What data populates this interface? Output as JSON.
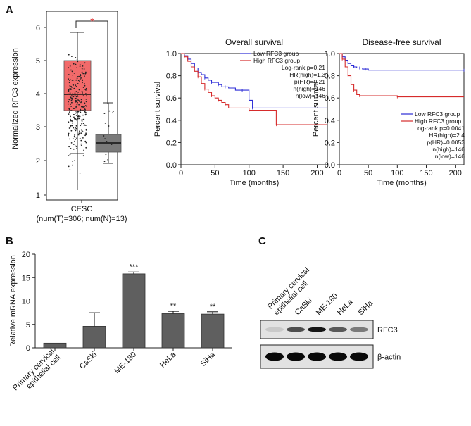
{
  "panels": {
    "a": "A",
    "b": "B",
    "c": "C"
  },
  "boxplot": {
    "ylabel": "Normalized RFC3 expression",
    "yticks": [
      "1",
      "2",
      "3",
      "4",
      "5",
      "6"
    ],
    "significance": "*",
    "xlabel_line1": "CESC",
    "xlabel_line2": "(num(T)=306; num(N)=13)",
    "colors": {
      "tumor": "#f26a6a",
      "normal": "#7a7a7a"
    }
  },
  "survival": [
    {
      "title": "Overall survival",
      "ylabel": "Percent survival",
      "xlabel": "Time (months)",
      "yticks": [
        "0.0",
        "0.2",
        "0.4",
        "0.6",
        "0.8",
        "1.0"
      ],
      "xticks": [
        "0",
        "50",
        "100",
        "150",
        "200"
      ],
      "legend": [
        {
          "label": "Low RFC3 group",
          "color": "#2b2bd6"
        },
        {
          "label": "High RFC3 group",
          "color": "#d62b2b"
        }
      ],
      "stats": [
        "Log-rank p=0.21",
        "HR(high)=1.3",
        "p(HR)=0.21",
        "n(high)=146",
        "n(low)=146"
      ]
    },
    {
      "title": "Disease-free survival",
      "ylabel": "Percent survival",
      "xlabel": "Time (months)",
      "yticks": [
        "0.0",
        "0.2",
        "0.4",
        "0.6",
        "0.8",
        "1.0"
      ],
      "xticks": [
        "0",
        "50",
        "100",
        "150",
        "200"
      ],
      "legend": [
        {
          "label": "Low RFC3 group",
          "color": "#2b2bd6"
        },
        {
          "label": "High RFC3 group",
          "color": "#d62b2b"
        }
      ],
      "stats": [
        "Log-rank p=0.0041",
        "HR(high)=2.4",
        "p(HR)=0.0053",
        "n(high)=146",
        "n(low)=146"
      ]
    }
  ],
  "chart_data": [
    {
      "type": "bar",
      "title": "",
      "ylabel": "Relative mRNA expression",
      "xlabel": "",
      "ylim": [
        0,
        20
      ],
      "yticks": [
        "0",
        "5",
        "10",
        "15",
        "20"
      ],
      "categories": [
        "Primary cervical\nepithelial cell",
        "CaSki",
        "ME-180",
        "HeLa",
        "SiHa"
      ],
      "values": [
        1.0,
        4.6,
        15.8,
        7.3,
        7.2
      ],
      "errors": [
        0.0,
        2.9,
        0.4,
        0.5,
        0.5
      ],
      "significance": [
        "",
        "",
        "***",
        "**",
        "**"
      ],
      "bar_color": "#5f5f5f"
    },
    {
      "type": "line",
      "title": "Overall survival",
      "xlabel": "Time (months)",
      "ylabel": "Percent survival",
      "xlim": [
        0,
        215
      ],
      "ylim": [
        0,
        1.0
      ],
      "series": [
        {
          "name": "Low RFC3 group",
          "color": "#2b2bd6",
          "x": [
            0,
            5,
            10,
            15,
            20,
            25,
            30,
            35,
            40,
            45,
            50,
            55,
            60,
            65,
            70,
            75,
            80,
            90,
            100,
            105,
            215
          ],
          "y": [
            1.0,
            0.98,
            0.95,
            0.91,
            0.87,
            0.83,
            0.81,
            0.78,
            0.76,
            0.74,
            0.74,
            0.72,
            0.7,
            0.7,
            0.69,
            0.69,
            0.67,
            0.67,
            0.58,
            0.51,
            0.51
          ]
        },
        {
          "name": "High RFC3 group",
          "color": "#d62b2b",
          "x": [
            0,
            5,
            10,
            15,
            20,
            25,
            30,
            35,
            40,
            45,
            50,
            55,
            60,
            65,
            70,
            100,
            135,
            140,
            215
          ],
          "y": [
            1.0,
            0.97,
            0.93,
            0.88,
            0.84,
            0.79,
            0.73,
            0.68,
            0.65,
            0.62,
            0.6,
            0.58,
            0.56,
            0.54,
            0.51,
            0.49,
            0.49,
            0.36,
            0.36
          ]
        }
      ]
    },
    {
      "type": "line",
      "title": "Disease-free survival",
      "xlabel": "Time (months)",
      "ylabel": "Percent survival",
      "xlim": [
        0,
        215
      ],
      "ylim": [
        0,
        1.0
      ],
      "series": [
        {
          "name": "Low RFC3 group",
          "color": "#2b2bd6",
          "x": [
            0,
            5,
            10,
            15,
            20,
            25,
            30,
            35,
            40,
            45,
            50,
            215
          ],
          "y": [
            1.0,
            0.97,
            0.94,
            0.91,
            0.89,
            0.88,
            0.87,
            0.87,
            0.86,
            0.86,
            0.85,
            0.85
          ]
        },
        {
          "name": "High RFC3 group",
          "color": "#d62b2b",
          "x": [
            0,
            5,
            10,
            15,
            20,
            25,
            30,
            35,
            40,
            100,
            215
          ],
          "y": [
            1.0,
            0.95,
            0.88,
            0.8,
            0.72,
            0.67,
            0.63,
            0.62,
            0.62,
            0.61,
            0.61
          ]
        }
      ]
    }
  ],
  "blot": {
    "lanes": [
      "Primary cervical\nepithelial cell",
      "CaSki",
      "ME-180",
      "HeLa",
      "SiHa"
    ],
    "rows": [
      {
        "label": "RFC3",
        "intensity": [
          0.15,
          0.7,
          0.95,
          0.65,
          0.5
        ]
      },
      {
        "label": "β-actin",
        "intensity": [
          1.0,
          1.0,
          1.0,
          1.0,
          1.0
        ]
      }
    ]
  }
}
